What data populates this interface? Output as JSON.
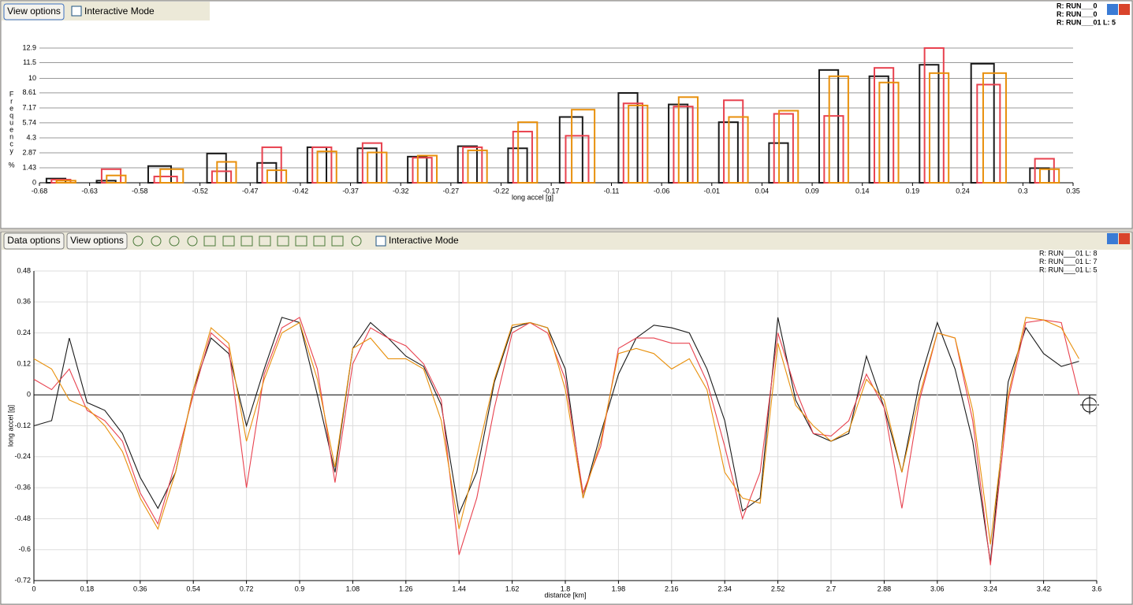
{
  "top_toolbar": {
    "view_options": "View options",
    "interactive_mode": "Interactive Mode"
  },
  "bottom_toolbar": {
    "data_options": "Data options",
    "view_options": "View options",
    "interactive_mode": "Interactive Mode"
  },
  "chart_data": [
    {
      "type": "histogram",
      "xlabel": "long accel [g]",
      "ylabel": "Frequency %",
      "bins": [
        -0.68,
        -0.63,
        -0.58,
        -0.52,
        -0.47,
        -0.42,
        -0.37,
        -0.32,
        -0.27,
        -0.22,
        -0.17,
        -0.11,
        -0.06,
        -0.01,
        0.04,
        0.09,
        0.14,
        0.19,
        0.24,
        0.3,
        0.35
      ],
      "xlim": [
        -0.68,
        0.35
      ],
      "xticks": [
        -0.68,
        -0.63,
        -0.58,
        -0.52,
        -0.47,
        -0.42,
        -0.37,
        -0.32,
        -0.27,
        -0.22,
        -0.17,
        -0.11,
        -0.06,
        -0.01,
        0.04,
        0.09,
        0.14,
        0.19,
        0.24,
        0.3,
        0.35
      ],
      "ylim": [
        0,
        12.9
      ],
      "yticks": [
        0,
        1.43,
        2.87,
        4.3,
        5.74,
        7.17,
        8.61,
        10,
        11.5,
        12.9
      ],
      "grid": true,
      "legend": "upper right",
      "series": [
        {
          "name": "R: RUN___0",
          "color": "#1a1a1a",
          "values": [
            0.4,
            0.2,
            1.6,
            2.8,
            1.9,
            3.4,
            3.3,
            2.5,
            3.5,
            3.3,
            6.3,
            8.6,
            7.5,
            5.8,
            3.8,
            10.8,
            10.2,
            11.3,
            11.4,
            1.4
          ]
        },
        {
          "name": "R: RUN___0",
          "color": "#e8424f",
          "values": [
            0.3,
            1.3,
            0.6,
            1.1,
            3.4,
            3.4,
            3.8,
            2.4,
            3.4,
            4.9,
            4.5,
            7.6,
            7.3,
            7.9,
            6.6,
            6.4,
            11.0,
            12.9,
            9.4,
            2.3
          ]
        },
        {
          "name": "R: RUN___01 L: 5",
          "color": "#e8900c",
          "values": [
            0.2,
            0.7,
            1.3,
            2.0,
            1.2,
            3.0,
            2.9,
            2.6,
            3.1,
            5.8,
            7.0,
            7.4,
            8.2,
            6.3,
            6.9,
            10.2,
            9.6,
            10.5,
            10.5,
            1.3
          ]
        }
      ]
    },
    {
      "type": "line",
      "xlabel": "distance [km]",
      "ylabel": "long accel [g]",
      "x": [
        0,
        0.06,
        0.12,
        0.18,
        0.24,
        0.3,
        0.36,
        0.42,
        0.48,
        0.54,
        0.6,
        0.66,
        0.72,
        0.78,
        0.84,
        0.9,
        0.96,
        1.02,
        1.08,
        1.14,
        1.2,
        1.26,
        1.32,
        1.38,
        1.44,
        1.5,
        1.56,
        1.62,
        1.68,
        1.74,
        1.8,
        1.86,
        1.92,
        1.98,
        2.04,
        2.1,
        2.16,
        2.22,
        2.28,
        2.34,
        2.4,
        2.46,
        2.52,
        2.58,
        2.64,
        2.7,
        2.76,
        2.82,
        2.88,
        2.94,
        3.0,
        3.06,
        3.12,
        3.18,
        3.24,
        3.3,
        3.36,
        3.42,
        3.48,
        3.54
      ],
      "xlim": [
        0,
        3.6
      ],
      "xticks": [
        0,
        0.18,
        0.36,
        0.54,
        0.72,
        0.9,
        1.08,
        1.26,
        1.44,
        1.62,
        1.8,
        1.98,
        2.16,
        2.34,
        2.52,
        2.7,
        2.88,
        3.06,
        3.24,
        3.42,
        3.6
      ],
      "ylim": [
        -0.72,
        0.48
      ],
      "yticks": [
        0.48,
        0.36,
        0.24,
        0.12,
        0,
        -0.12,
        -0.24,
        -0.36,
        -0.48,
        -0.6,
        -0.72
      ],
      "grid": true,
      "legend": "upper right",
      "series": [
        {
          "name": "R: RUN___01 L: 8",
          "color": "#1a1a1a",
          "values": [
            -0.12,
            -0.1,
            0.22,
            -0.03,
            -0.06,
            -0.15,
            -0.32,
            -0.44,
            -0.3,
            0.02,
            0.22,
            0.16,
            -0.12,
            0.1,
            0.3,
            0.28,
            0.0,
            -0.3,
            0.18,
            0.28,
            0.22,
            0.15,
            0.11,
            -0.04,
            -0.46,
            -0.3,
            0.05,
            0.26,
            0.28,
            0.26,
            0.1,
            -0.4,
            -0.15,
            0.08,
            0.22,
            0.27,
            0.26,
            0.24,
            0.1,
            -0.1,
            -0.45,
            -0.4,
            0.3,
            -0.02,
            -0.15,
            -0.18,
            -0.15,
            0.15,
            -0.05,
            -0.3,
            0.05,
            0.28,
            0.1,
            -0.18,
            -0.65,
            0.05,
            0.26,
            0.16,
            0.11,
            0.13
          ]
        },
        {
          "name": "R: RUN___01 L: 7",
          "color": "#e8424f",
          "values": [
            0.06,
            0.02,
            0.1,
            -0.06,
            -0.1,
            -0.18,
            -0.38,
            -0.5,
            -0.26,
            0.0,
            0.24,
            0.18,
            -0.36,
            0.08,
            0.26,
            0.3,
            0.1,
            -0.34,
            0.12,
            0.26,
            0.22,
            0.19,
            0.12,
            -0.02,
            -0.62,
            -0.4,
            -0.05,
            0.24,
            0.28,
            0.24,
            0.06,
            -0.38,
            -0.2,
            0.18,
            0.22,
            0.22,
            0.2,
            0.2,
            0.05,
            -0.2,
            -0.48,
            -0.3,
            0.24,
            0.02,
            -0.15,
            -0.16,
            -0.1,
            0.08,
            -0.05,
            -0.44,
            -0.02,
            0.24,
            0.22,
            -0.1,
            -0.66,
            -0.02,
            0.28,
            0.29,
            0.28,
            0.0
          ]
        },
        {
          "name": "R: RUN___01 L: 5",
          "color": "#e8900c",
          "values": [
            0.14,
            0.1,
            -0.02,
            -0.05,
            -0.12,
            -0.22,
            -0.4,
            -0.52,
            -0.3,
            0.02,
            0.26,
            0.2,
            -0.18,
            0.06,
            0.24,
            0.28,
            0.06,
            -0.28,
            0.18,
            0.22,
            0.14,
            0.14,
            0.1,
            -0.1,
            -0.52,
            -0.24,
            0.06,
            0.27,
            0.28,
            0.26,
            0.02,
            -0.4,
            -0.18,
            0.16,
            0.18,
            0.16,
            0.1,
            0.14,
            0.02,
            -0.3,
            -0.4,
            -0.42,
            0.2,
            -0.04,
            -0.12,
            -0.18,
            -0.14,
            0.06,
            -0.02,
            -0.3,
            0.0,
            0.24,
            0.22,
            -0.06,
            -0.58,
            0.0,
            0.3,
            0.29,
            0.26,
            0.14
          ]
        }
      ]
    }
  ]
}
